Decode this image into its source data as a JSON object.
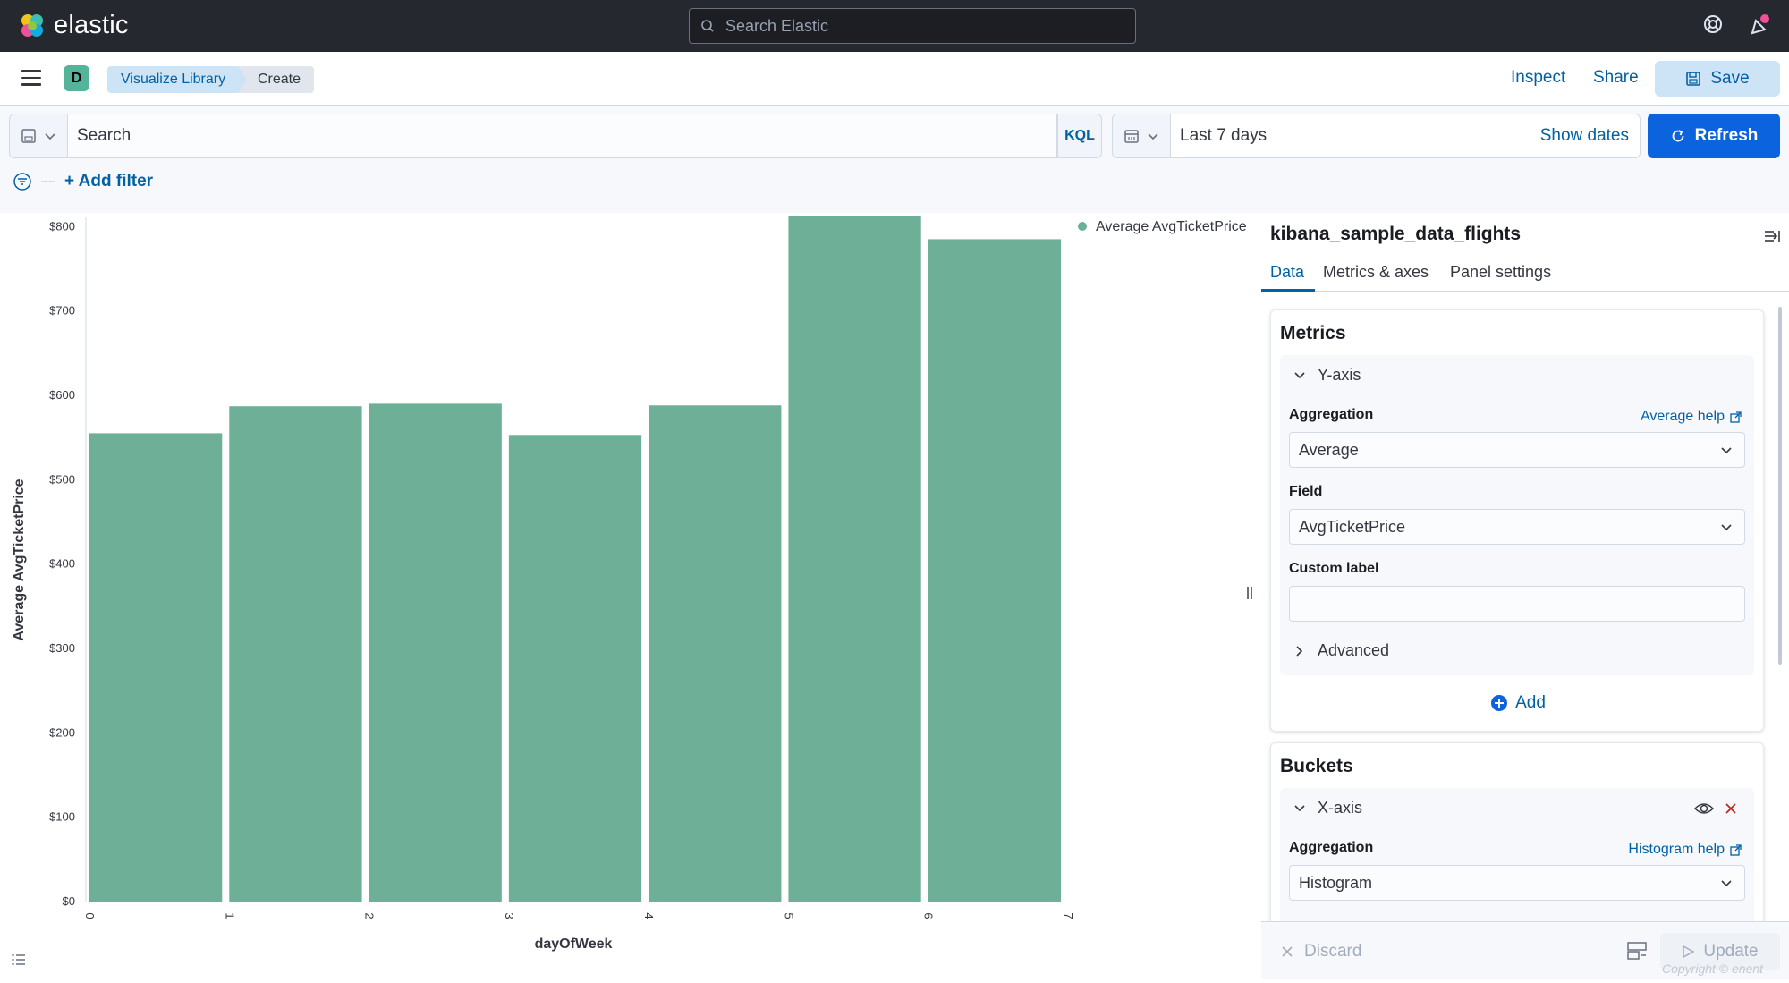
{
  "app": {
    "brand": "elastic",
    "search_placeholder": "Search Elastic"
  },
  "header": {
    "avatar_letter": "D",
    "breadcrumbs": [
      "Visualize Library",
      "Create"
    ],
    "links": {
      "inspect": "Inspect",
      "share": "Share",
      "save": "Save"
    }
  },
  "query": {
    "search_placeholder": "Search",
    "language": "KQL",
    "time_range": "Last 7 days",
    "show_dates": "Show dates",
    "refresh": "Refresh",
    "add_filter": "+ Add filter"
  },
  "sidebar": {
    "index_pattern": "kibana_sample_data_flights",
    "tabs": [
      "Data",
      "Metrics & axes",
      "Panel settings"
    ],
    "metrics": {
      "title": "Metrics",
      "y_axis_label": "Y-axis",
      "aggregation_label": "Aggregation",
      "aggregation_help": "Average help",
      "aggregation_value": "Average",
      "field_label": "Field",
      "field_value": "AvgTicketPrice",
      "custom_label": "Custom label",
      "custom_value": "",
      "advanced": "Advanced",
      "add": "Add"
    },
    "buckets": {
      "title": "Buckets",
      "x_axis_label": "X-axis",
      "aggregation_label": "Aggregation",
      "aggregation_help": "Histogram help",
      "aggregation_value": "Histogram"
    },
    "footer": {
      "discard": "Discard",
      "update": "Update"
    }
  },
  "watermark": "Copyright © enent",
  "colors": {
    "bar": "#6db097",
    "accent": "#0061a6",
    "primary": "#0b64dd"
  },
  "chart_data": {
    "type": "bar",
    "categories": [
      "0",
      "1",
      "2",
      "3",
      "4",
      "5",
      "6"
    ],
    "x_ticks": [
      "0",
      "1",
      "2",
      "3",
      "4",
      "5",
      "6",
      "7"
    ],
    "series": [
      {
        "name": "Average AvgTicketPrice",
        "values": [
          555,
          587,
          590,
          553,
          588,
          813,
          785
        ]
      }
    ],
    "xlabel": "dayOfWeek",
    "ylabel": "Average AvgTicketPrice",
    "ylim": [
      0,
      813
    ],
    "y_ticks": [
      "$0",
      "$100",
      "$200",
      "$300",
      "$400",
      "$500",
      "$600",
      "$700",
      "$800"
    ],
    "legend_position": "top-right",
    "grid": false
  }
}
